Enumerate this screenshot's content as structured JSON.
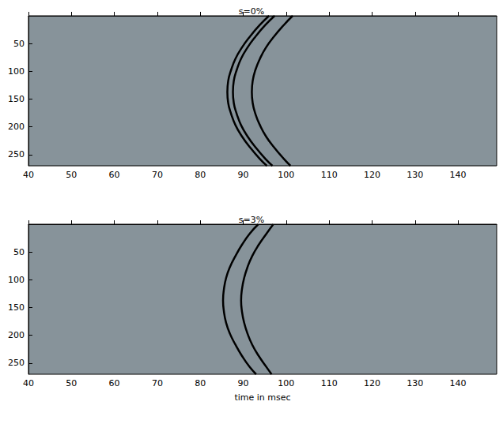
{
  "chart_data": [
    {
      "type": "line",
      "title": "s=0%",
      "xlim": [
        40,
        149
      ],
      "xticks": [
        40,
        50,
        60,
        70,
        80,
        90,
        100,
        110,
        120,
        130,
        140
      ],
      "ylim": [
        0,
        270
      ],
      "yticks": [
        50,
        100,
        150,
        200,
        250
      ],
      "grid": false,
      "series": [
        {
          "color": "#000000",
          "x": [
            96.0,
            93.8,
            91.6,
            89.7,
            88.2,
            87.2,
            86.5,
            86.3,
            86.5,
            87.2,
            88.2,
            89.7,
            91.6,
            93.8,
            95.5
          ],
          "y": [
            0,
            17,
            37,
            57,
            77,
            97,
            117,
            137,
            157,
            177,
            197,
            217,
            237,
            257,
            270
          ]
        },
        {
          "color": "#000000",
          "x": [
            97.3,
            95.1,
            92.9,
            91.0,
            89.5,
            88.5,
            87.8,
            87.6,
            87.8,
            88.5,
            89.5,
            91.0,
            92.9,
            95.1,
            96.8
          ],
          "y": [
            0,
            17,
            37,
            57,
            77,
            97,
            117,
            137,
            157,
            177,
            197,
            217,
            237,
            257,
            270
          ]
        },
        {
          "color": "#000000",
          "x": [
            101.5,
            99.4,
            97.2,
            95.3,
            93.9,
            92.85,
            92.2,
            92.0,
            92.2,
            92.85,
            93.9,
            95.3,
            97.2,
            99.4,
            101.0
          ],
          "y": [
            0,
            17,
            37,
            57,
            77,
            97,
            117,
            137,
            157,
            177,
            197,
            217,
            237,
            257,
            270
          ]
        }
      ]
    },
    {
      "type": "line",
      "title": "s=3%",
      "x_label": "time in msec",
      "xlim": [
        40,
        149
      ],
      "xticks": [
        40,
        50,
        60,
        70,
        80,
        90,
        100,
        110,
        120,
        130,
        140
      ],
      "ylim": [
        0,
        270
      ],
      "yticks": [
        50,
        100,
        150,
        200,
        250
      ],
      "grid": false,
      "series": [
        {
          "color": "#000000",
          "x": [
            93.5,
            91.5,
            89.7,
            88.2,
            86.9,
            86.0,
            85.5,
            85.3,
            85.5,
            86.0,
            86.9,
            88.2,
            89.7,
            91.5,
            93.0
          ],
          "y": [
            0,
            17,
            37,
            57,
            77,
            97,
            117,
            137,
            157,
            177,
            197,
            217,
            237,
            257,
            270
          ]
        },
        {
          "color": "#000000",
          "x": [
            97.0,
            95.4,
            93.6,
            92.1,
            91.0,
            90.2,
            89.7,
            89.5,
            89.7,
            90.2,
            91.0,
            92.1,
            93.6,
            95.4,
            96.6
          ],
          "y": [
            0,
            17,
            37,
            57,
            77,
            97,
            117,
            137,
            157,
            177,
            197,
            217,
            237,
            257,
            270
          ]
        }
      ]
    }
  ]
}
